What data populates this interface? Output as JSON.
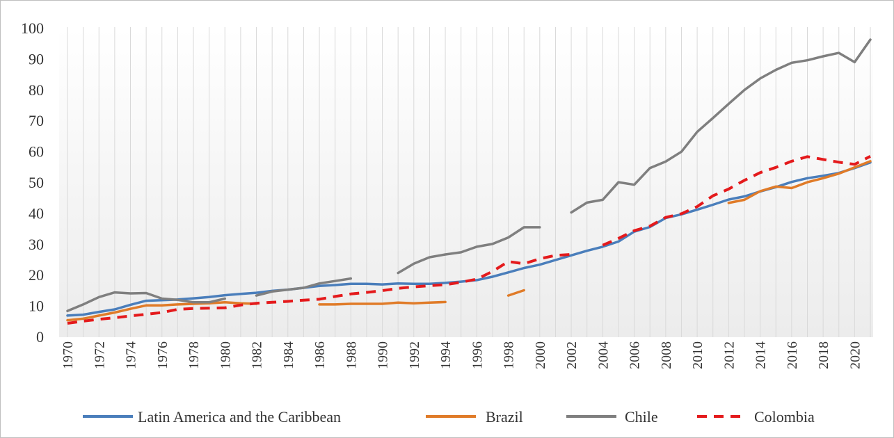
{
  "chart_data": {
    "type": "line",
    "title": "",
    "xlabel": "",
    "ylabel": "",
    "ylim": [
      0,
      100
    ],
    "yticks": [
      "0",
      "10",
      "20",
      "30",
      "40",
      "50",
      "60",
      "70",
      "80",
      "90",
      "100"
    ],
    "x": [
      1970,
      1971,
      1972,
      1973,
      1974,
      1975,
      1976,
      1977,
      1978,
      1979,
      1980,
      1981,
      1982,
      1983,
      1984,
      1985,
      1986,
      1987,
      1988,
      1989,
      1990,
      1991,
      1992,
      1993,
      1994,
      1995,
      1996,
      1997,
      1998,
      1999,
      2000,
      2001,
      2002,
      2003,
      2004,
      2005,
      2006,
      2007,
      2008,
      2009,
      2010,
      2011,
      2012,
      2013,
      2014,
      2015,
      2016,
      2017,
      2018,
      2019,
      2020,
      2021
    ],
    "xticks": [
      "1970",
      "1972",
      "1974",
      "1976",
      "1978",
      "1980",
      "1982",
      "1984",
      "1986",
      "1988",
      "1990",
      "1992",
      "1994",
      "1996",
      "1998",
      "2000",
      "2002",
      "2004",
      "2006",
      "2008",
      "2010",
      "2012",
      "2014",
      "2016",
      "2018",
      "2020"
    ],
    "grid": "vertical lines at each year",
    "legend_position": "bottom",
    "series": [
      {
        "name": "Latin America and the Caribbean",
        "color": "#4a7ebb",
        "style": "solid",
        "values": [
          7.0,
          7.3,
          8.2,
          9.0,
          10.5,
          11.8,
          12.0,
          12.2,
          12.6,
          13.0,
          13.6,
          14.0,
          14.4,
          15.0,
          15.4,
          16.0,
          16.6,
          16.9,
          17.3,
          17.3,
          17.1,
          17.4,
          17.3,
          17.3,
          17.6,
          18.0,
          18.5,
          19.6,
          21.0,
          22.4,
          23.5,
          25.0,
          26.5,
          28.0,
          29.3,
          31.0,
          34.2,
          35.7,
          38.6,
          39.8,
          41.3,
          42.9,
          44.6,
          45.6,
          47.2,
          48.6,
          50.3,
          51.5,
          52.3,
          53.2,
          54.8,
          56.6
        ]
      },
      {
        "name": "Brazil",
        "color": "#e07b28",
        "style": "solid",
        "values": [
          5.5,
          6.0,
          7.0,
          8.0,
          9.2,
          10.3,
          10.3,
          10.6,
          10.8,
          11.0,
          11.3,
          11.0,
          10.8,
          null,
          null,
          null,
          10.6,
          10.6,
          10.8,
          10.8,
          10.8,
          11.2,
          11.0,
          11.2,
          11.4,
          null,
          null,
          null,
          13.5,
          15.2,
          null,
          null,
          null,
          null,
          null,
          null,
          null,
          null,
          null,
          null,
          null,
          null,
          43.5,
          44.5,
          47.3,
          48.8,
          48.3,
          50.2,
          51.5,
          53.0,
          55.0,
          57.0
        ]
      },
      {
        "name": "Chile",
        "color": "#7f7f7f",
        "style": "solid",
        "values": [
          8.5,
          10.6,
          13.0,
          14.5,
          14.2,
          14.3,
          12.5,
          12.1,
          11.3,
          11.3,
          12.5,
          null,
          13.5,
          14.8,
          15.4,
          16.0,
          17.4,
          18.2,
          19.0,
          null,
          null,
          20.8,
          23.8,
          25.9,
          26.8,
          27.5,
          29.3,
          30.2,
          32.3,
          35.6,
          35.6,
          null,
          40.4,
          43.6,
          44.5,
          50.2,
          49.4,
          54.8,
          56.9,
          60.1,
          66.5,
          71.0,
          75.6,
          80.1,
          83.8,
          86.6,
          88.9,
          89.7,
          91.0,
          92.1,
          89.1,
          96.4
        ]
      },
      {
        "name": "Colombia",
        "color": "#e41a1c",
        "style": "dashed",
        "values": [
          4.5,
          5.2,
          5.8,
          6.3,
          6.9,
          7.4,
          8.0,
          9.0,
          9.3,
          9.4,
          9.5,
          10.4,
          11.0,
          11.3,
          11.6,
          12.0,
          12.3,
          13.2,
          14.0,
          14.5,
          15.1,
          15.8,
          16.3,
          16.7,
          17.0,
          17.8,
          18.8,
          21.3,
          24.5,
          23.8,
          25.4,
          26.5,
          26.8,
          null,
          29.8,
          32.0,
          34.5,
          36.0,
          38.8,
          40.0,
          42.3,
          45.8,
          48.0,
          50.8,
          53.3,
          55.0,
          57.0,
          58.5,
          57.6,
          56.7,
          56.0,
          58.6
        ]
      }
    ]
  }
}
